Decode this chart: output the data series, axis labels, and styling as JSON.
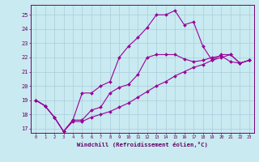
{
  "title": "",
  "xlabel": "Windchill (Refroidissement éolien,°C)",
  "bg_color": "#c8eaf0",
  "grid_color": "#aaccdd",
  "line_color": "#990099",
  "xlim": [
    -0.5,
    23.5
  ],
  "ylim": [
    16.7,
    25.7
  ],
  "xticks": [
    0,
    1,
    2,
    3,
    4,
    5,
    6,
    7,
    8,
    9,
    10,
    11,
    12,
    13,
    14,
    15,
    16,
    17,
    18,
    19,
    20,
    21,
    22,
    23
  ],
  "yticks": [
    17,
    18,
    19,
    20,
    21,
    22,
    23,
    24,
    25
  ],
  "series": [
    [
      19.0,
      18.6,
      17.8,
      16.8,
      17.6,
      17.6,
      18.3,
      18.5,
      19.5,
      19.9,
      20.1,
      20.8,
      22.0,
      22.2,
      22.2,
      22.2,
      21.9,
      21.7,
      21.8,
      22.0,
      22.1,
      21.7,
      21.6,
      21.8
    ],
    [
      19.0,
      18.6,
      17.8,
      16.8,
      17.6,
      19.5,
      19.5,
      20.0,
      20.3,
      22.0,
      22.8,
      23.4,
      24.1,
      25.0,
      25.0,
      25.3,
      24.3,
      24.5,
      22.8,
      21.8,
      22.2,
      22.2,
      21.6,
      21.8
    ],
    [
      19.0,
      18.6,
      17.8,
      16.8,
      17.5,
      17.5,
      17.8,
      18.0,
      18.2,
      18.5,
      18.8,
      19.2,
      19.6,
      20.0,
      20.3,
      20.7,
      21.0,
      21.3,
      21.5,
      21.8,
      22.0,
      22.2,
      21.6,
      21.8
    ]
  ]
}
